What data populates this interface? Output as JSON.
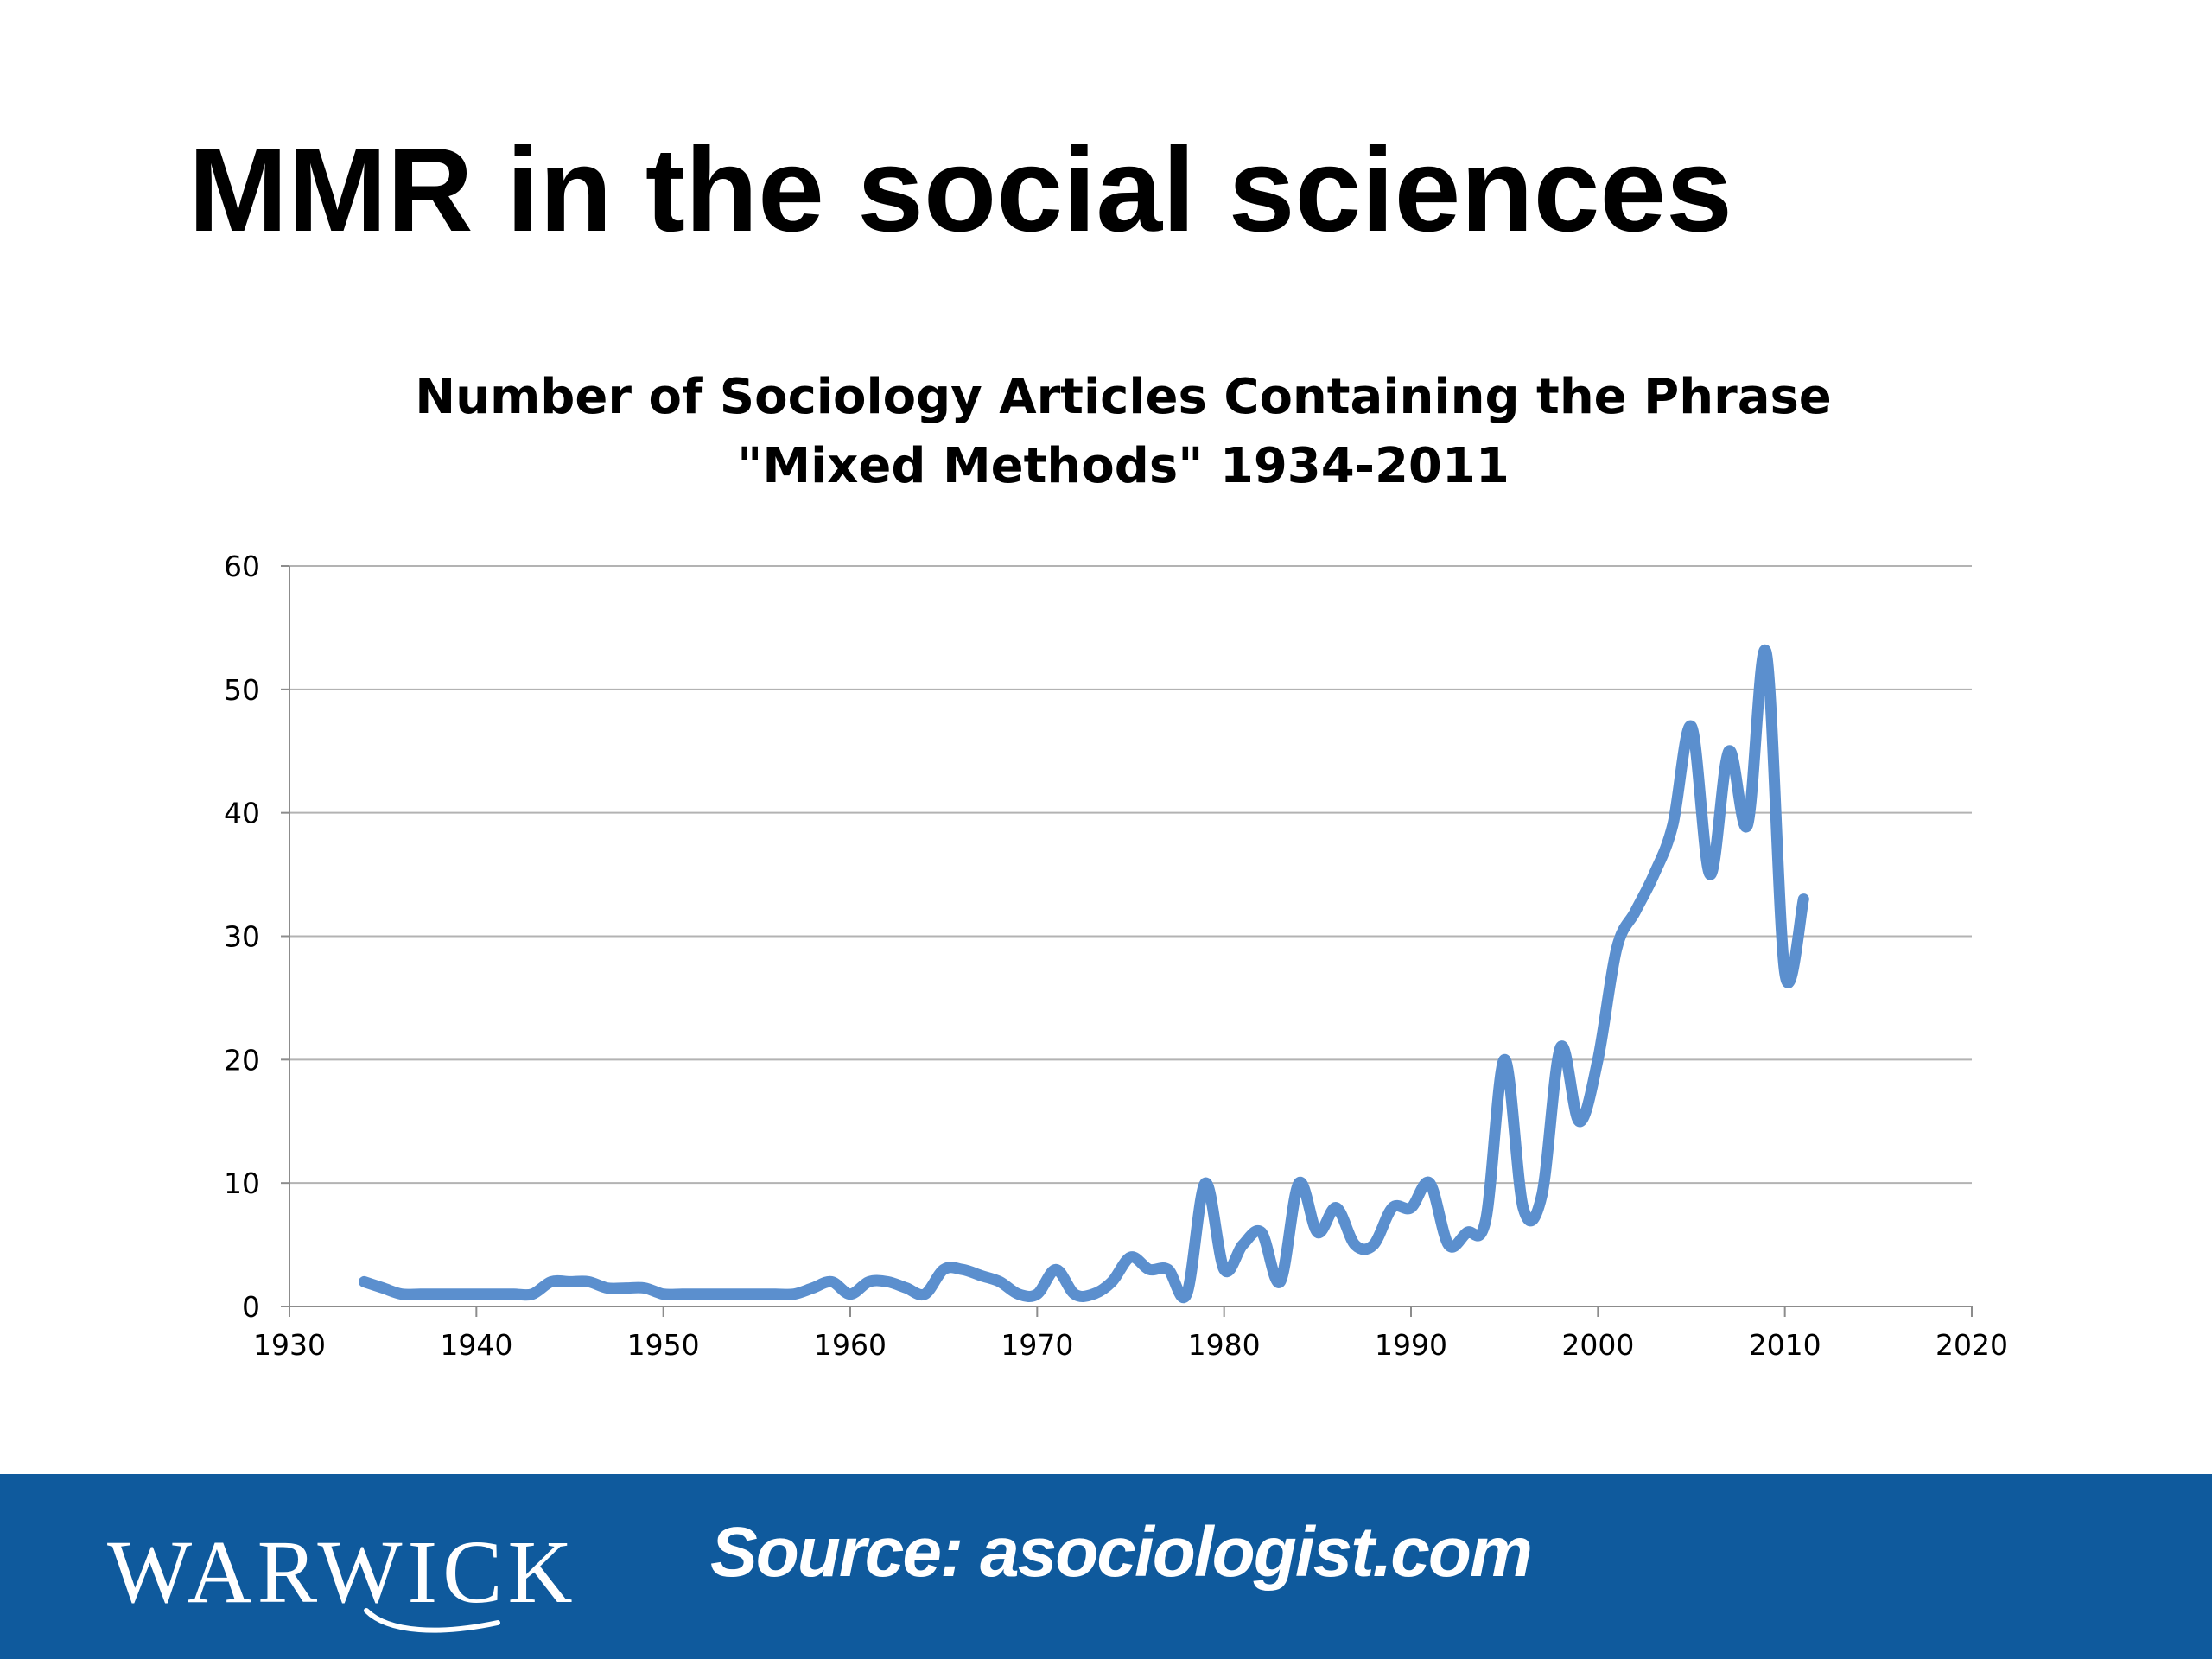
{
  "slide": {
    "title": "MMR in the social sciences"
  },
  "footer": {
    "logo_text": "WARWICK",
    "source_text": "Source: asociologist.com",
    "background_color": "#0f5a9d"
  },
  "chart_data": {
    "type": "line",
    "title_line1": "Number of Sociology Articles Containing the Phrase",
    "title_line2": "\"Mixed Methods\" 1934-2011",
    "xlabel": "",
    "ylabel": "",
    "xlim": [
      1930,
      2020
    ],
    "ylim": [
      0,
      60
    ],
    "x_ticks": [
      1930,
      1940,
      1950,
      1960,
      1970,
      1980,
      1990,
      2000,
      2010,
      2020
    ],
    "y_ticks": [
      0,
      10,
      20,
      30,
      40,
      50,
      60
    ],
    "grid": true,
    "legend": "none",
    "line_color": "#5b8fce",
    "series": [
      {
        "x": [
          1934,
          1935,
          1936,
          1937,
          1938,
          1939,
          1940,
          1941,
          1942,
          1943,
          1944,
          1945,
          1946,
          1947,
          1948,
          1949,
          1950,
          1951,
          1952,
          1953,
          1954,
          1955,
          1956,
          1957,
          1958,
          1959,
          1960,
          1961,
          1962,
          1963,
          1964,
          1965,
          1966,
          1967,
          1968,
          1969,
          1970,
          1971,
          1972,
          1973,
          1974,
          1975,
          1976,
          1977,
          1978,
          1979,
          1980,
          1981,
          1982,
          1983,
          1984,
          1985,
          1986,
          1987,
          1988,
          1989,
          1990,
          1991,
          1992,
          1993,
          1994,
          1995,
          1996,
          1997,
          1998,
          1999,
          2000,
          2001,
          2002,
          2003,
          2004,
          2005,
          2006,
          2007,
          2008,
          2009,
          2010,
          2011
        ],
        "values": [
          2,
          1.5,
          1,
          1,
          1,
          1,
          1,
          1,
          1,
          1,
          2,
          2,
          2,
          1.5,
          1.5,
          1.5,
          1,
          1,
          1,
          1,
          1,
          1,
          1,
          1,
          1.5,
          2,
          1,
          2,
          2,
          1.5,
          1,
          3,
          3,
          2.5,
          2,
          1,
          1,
          3,
          1,
          1,
          2,
          4,
          3,
          3,
          1,
          10,
          3,
          5,
          6,
          2,
          10,
          6,
          8,
          5,
          5,
          8,
          8,
          10,
          5,
          6,
          7,
          20,
          8,
          9,
          21,
          15,
          20,
          29,
          32,
          35,
          39,
          47,
          35,
          45,
          39,
          53,
          27,
          33
        ]
      }
    ]
  }
}
